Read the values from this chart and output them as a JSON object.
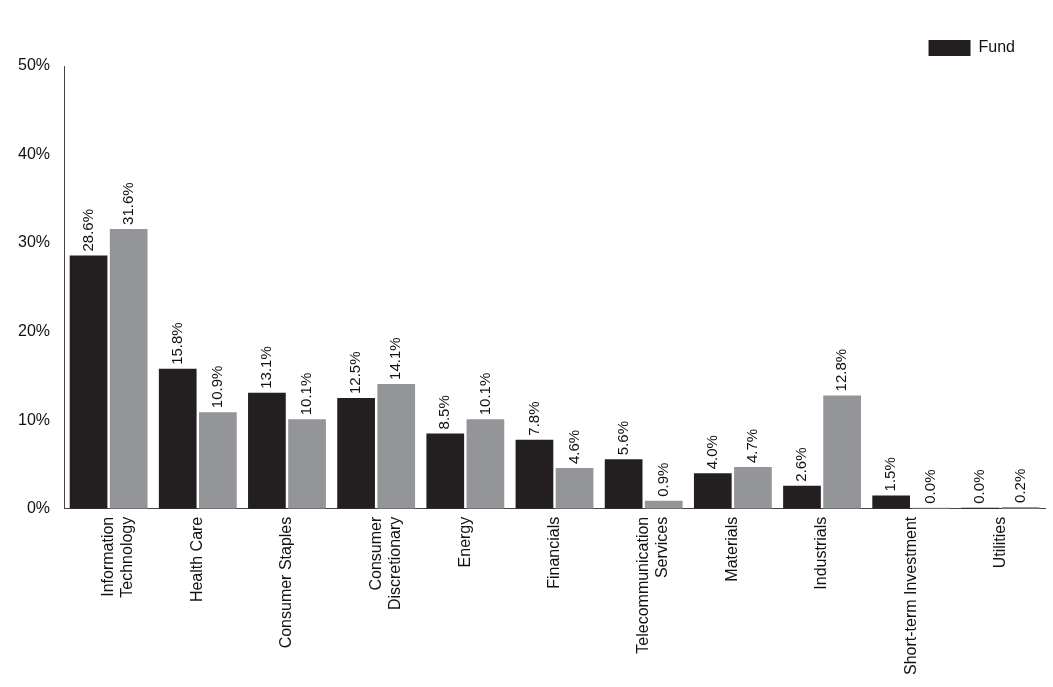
{
  "chart_data": {
    "type": "bar",
    "categories": [
      "Information\nTechnology",
      "Health Care",
      "Consumer Staples",
      "Consumer\nDiscretionary",
      "Energy",
      "Financials",
      "Telecommunication\nServices",
      "Materials",
      "Industrials",
      "Short-term Investment",
      "Utilities"
    ],
    "series": [
      {
        "name": "Fund",
        "color": "#231f20",
        "values": [
          28.6,
          15.8,
          13.1,
          12.5,
          8.5,
          7.8,
          5.6,
          4.0,
          2.6,
          1.5,
          0.0
        ],
        "value_labels": [
          "28.6%",
          "15.8%",
          "13.1%",
          "12.5%",
          "8.5%",
          "7.8%",
          "5.6%",
          "4.0%",
          "2.6%",
          "1.5%",
          "0.0%"
        ]
      },
      {
        "color": "#939598",
        "values": [
          31.6,
          10.9,
          10.1,
          14.1,
          10.1,
          4.6,
          0.9,
          4.7,
          12.8,
          0.0,
          0.2
        ],
        "value_labels": [
          "31.6%",
          "10.9%",
          "10.1%",
          "14.1%",
          "10.1%",
          "4.6%",
          "0.9%",
          "4.7%",
          "12.8%",
          "0.0%",
          "0.2%"
        ]
      }
    ],
    "ylim": [
      0,
      50
    ],
    "yticks": [
      {
        "value": 0,
        "label": "0%"
      },
      {
        "value": 10,
        "label": "10%"
      },
      {
        "value": 20,
        "label": "20%"
      },
      {
        "value": 30,
        "label": "30%"
      },
      {
        "value": 40,
        "label": "40%"
      },
      {
        "value": 50,
        "label": "50%"
      }
    ],
    "grid": false,
    "legend": "top right"
  }
}
